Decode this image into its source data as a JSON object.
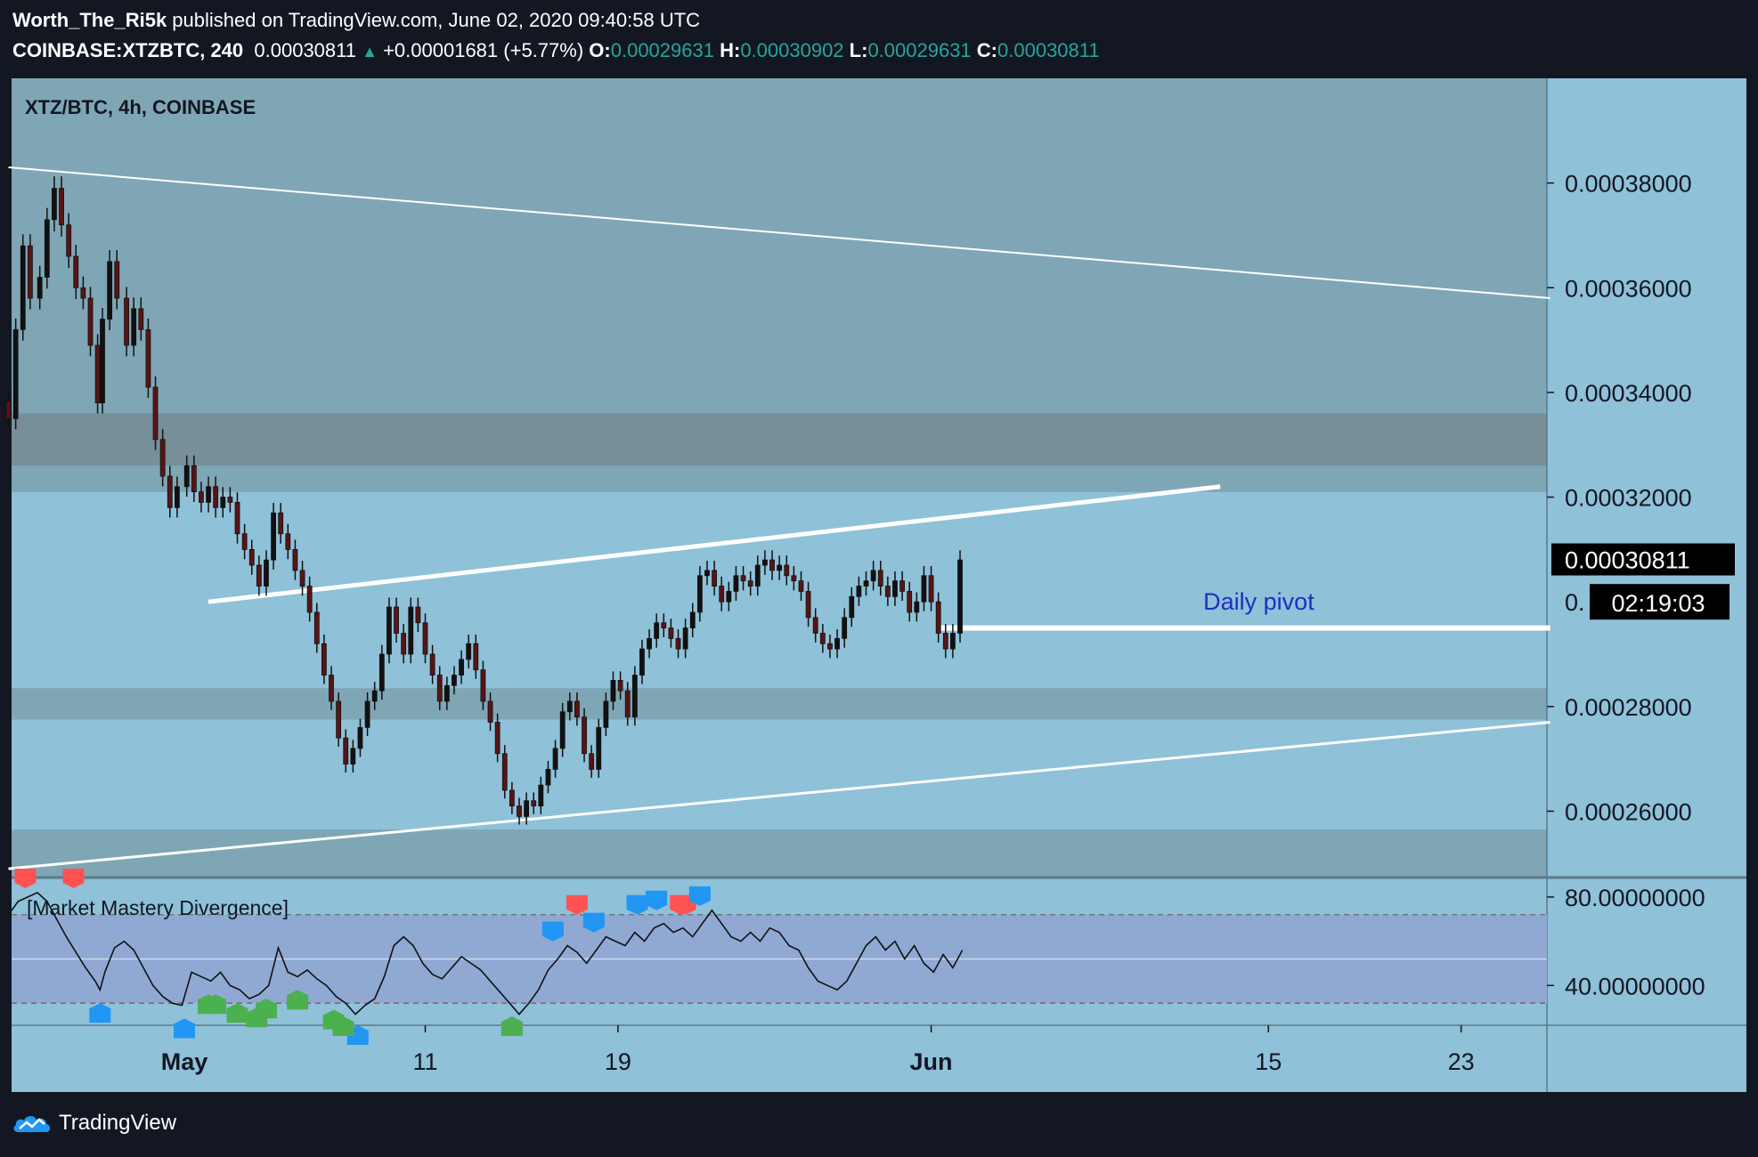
{
  "header": {
    "author": "Worth_The_Ri5k",
    "published_text": " published on TradingView.com, June 02, 2020 09:40:58 UTC",
    "symbol": "COINBASE:XTZBTC, 240",
    "last": "0.00030811",
    "change": "+0.00001681 (+5.77%)",
    "o_label": "O:",
    "o_value": "0.00029631",
    "h_label": "H:",
    "h_value": "0.00030902",
    "l_label": "L:",
    "l_value": "0.00029631",
    "c_label": "C:",
    "c_value": "0.00030811"
  },
  "footer": {
    "brand": "TradingView"
  },
  "colors": {
    "outer_bg": "#131722",
    "chart_bg": "#8fc1d9",
    "zone_dark": "#7fa6b5",
    "zone_darker": "#768f98",
    "candle_body": "#5a1414",
    "indicator_band": "#8fa9d3",
    "pivot_label": "#1f2dc2",
    "up_arrow_red": "#ff5252",
    "marker_blue": "#2196f3",
    "marker_green": "#4caf50"
  },
  "chart_data": {
    "type": "candlestick",
    "title": "XTZ/BTC, 4h, COINBASE",
    "price_axis": {
      "ticks": [
        0.00038,
        0.00036,
        0.00034,
        0.00032,
        0.00028,
        0.00026
      ],
      "tick_labels": [
        "0.00038000",
        "0.00036000",
        "0.00034000",
        "0.00032000",
        "0.00028000",
        "0.00026000"
      ],
      "range": [
        0.0002475,
        0.0004
      ],
      "last_price_label": "0.00030811",
      "countdown_prefix": "0.",
      "countdown_label": "02:19:03"
    },
    "time_axis": {
      "tick_labels": [
        "May",
        "11",
        "19",
        "Jun",
        "15",
        "23"
      ],
      "tick_days": [
        0,
        10,
        18,
        31,
        45,
        53
      ]
    },
    "zones": [
      {
        "name": "upper-resistance-zone",
        "from": 0.000326,
        "to": 0.000336
      },
      {
        "name": "upper-zone-edge",
        "from": 0.000321,
        "to": 0.000326
      },
      {
        "name": "mid-support-zone",
        "from": 0.0002775,
        "to": 0.0002835
      },
      {
        "name": "lower-support-zone",
        "from": 0.0002475,
        "to": 0.0002565
      }
    ],
    "trendlines": [
      {
        "name": "upper-channel-line",
        "p1": [
          -7.3,
          0.000383
        ],
        "p2": [
          56.7,
          0.000358
        ],
        "width": 2
      },
      {
        "name": "rising-wedge-top",
        "p1": [
          1.0,
          0.0003
        ],
        "p2": [
          43.0,
          0.000322
        ],
        "width": 5
      },
      {
        "name": "lower-channel-line",
        "p1": [
          -7.3,
          0.000249
        ],
        "p2": [
          56.7,
          0.000277
        ],
        "width": 3
      },
      {
        "name": "daily-pivot-line",
        "p1": [
          31.2,
          0.000295
        ],
        "p2": [
          56.7,
          0.000295
        ],
        "width": 6
      }
    ],
    "annotation": {
      "text": "Daily pivot",
      "at": [
        44.6,
        0.0002985
      ]
    },
    "close_series": [
      [
        -7.3,
        0.000335
      ],
      [
        -7.0,
        0.000352
      ],
      [
        -6.7,
        0.000368
      ],
      [
        -6.4,
        0.000358
      ],
      [
        -6.0,
        0.000362
      ],
      [
        -5.7,
        0.000373
      ],
      [
        -5.4,
        0.000379
      ],
      [
        -5.1,
        0.000372
      ],
      [
        -4.8,
        0.000366
      ],
      [
        -4.5,
        0.00036
      ],
      [
        -4.2,
        0.000358
      ],
      [
        -3.9,
        0.000349
      ],
      [
        -3.6,
        0.000338
      ],
      [
        -3.4,
        0.000354
      ],
      [
        -3.1,
        0.000365
      ],
      [
        -2.8,
        0.000358
      ],
      [
        -2.4,
        0.000349
      ],
      [
        -2.1,
        0.000356
      ],
      [
        -1.8,
        0.000352
      ],
      [
        -1.5,
        0.000341
      ],
      [
        -1.2,
        0.000331
      ],
      [
        -0.9,
        0.000324
      ],
      [
        -0.6,
        0.000318
      ],
      [
        -0.3,
        0.000322
      ],
      [
        0.1,
        0.000326
      ],
      [
        0.4,
        0.000321
      ],
      [
        0.7,
        0.000319
      ],
      [
        1.0,
        0.000322
      ],
      [
        1.3,
        0.000318
      ],
      [
        1.6,
        0.00032
      ],
      [
        1.9,
        0.000319
      ],
      [
        2.2,
        0.000313
      ],
      [
        2.5,
        0.00031
      ],
      [
        2.8,
        0.000307
      ],
      [
        3.1,
        0.000303
      ],
      [
        3.4,
        0.000308
      ],
      [
        3.7,
        0.000317
      ],
      [
        4.0,
        0.000313
      ],
      [
        4.3,
        0.00031
      ],
      [
        4.6,
        0.000306
      ],
      [
        4.9,
        0.000303
      ],
      [
        5.2,
        0.000298
      ],
      [
        5.5,
        0.000292
      ],
      [
        5.8,
        0.000286
      ],
      [
        6.1,
        0.000281
      ],
      [
        6.4,
        0.000274
      ],
      [
        6.7,
        0.000269
      ],
      [
        7.0,
        0.000272
      ],
      [
        7.3,
        0.000276
      ],
      [
        7.6,
        0.000281
      ],
      [
        7.9,
        0.000283
      ],
      [
        8.2,
        0.00029
      ],
      [
        8.5,
        0.000299
      ],
      [
        8.8,
        0.000294
      ],
      [
        9.1,
        0.00029
      ],
      [
        9.4,
        0.000299
      ],
      [
        9.7,
        0.000296
      ],
      [
        10.0,
        0.00029
      ],
      [
        10.3,
        0.000286
      ],
      [
        10.6,
        0.000281
      ],
      [
        10.9,
        0.000284
      ],
      [
        11.2,
        0.000286
      ],
      [
        11.5,
        0.000289
      ],
      [
        11.8,
        0.000292
      ],
      [
        12.1,
        0.000287
      ],
      [
        12.4,
        0.000281
      ],
      [
        12.7,
        0.000277
      ],
      [
        13.0,
        0.000271
      ],
      [
        13.3,
        0.000264
      ],
      [
        13.6,
        0.000261
      ],
      [
        13.9,
        0.000259
      ],
      [
        14.2,
        0.000262
      ],
      [
        14.5,
        0.000261
      ],
      [
        14.8,
        0.000265
      ],
      [
        15.1,
        0.000268
      ],
      [
        15.4,
        0.000272
      ],
      [
        15.7,
        0.000279
      ],
      [
        16.0,
        0.000281
      ],
      [
        16.3,
        0.000278
      ],
      [
        16.6,
        0.000271
      ],
      [
        16.9,
        0.000268
      ],
      [
        17.2,
        0.000276
      ],
      [
        17.5,
        0.000281
      ],
      [
        17.8,
        0.000285
      ],
      [
        18.1,
        0.000283
      ],
      [
        18.4,
        0.000278
      ],
      [
        18.7,
        0.000286
      ],
      [
        19.0,
        0.000291
      ],
      [
        19.3,
        0.000293
      ],
      [
        19.6,
        0.000296
      ],
      [
        19.9,
        0.000295
      ],
      [
        20.2,
        0.000293
      ],
      [
        20.5,
        0.000291
      ],
      [
        20.8,
        0.000295
      ],
      [
        21.1,
        0.000298
      ],
      [
        21.4,
        0.000305
      ],
      [
        21.7,
        0.000306
      ],
      [
        22.0,
        0.000303
      ],
      [
        22.3,
        0.0003
      ],
      [
        22.6,
        0.000302
      ],
      [
        22.9,
        0.000305
      ],
      [
        23.2,
        0.000304
      ],
      [
        23.5,
        0.000303
      ],
      [
        23.8,
        0.000307
      ],
      [
        24.1,
        0.000308
      ],
      [
        24.4,
        0.000306
      ],
      [
        24.7,
        0.000307
      ],
      [
        25.0,
        0.000305
      ],
      [
        25.3,
        0.000304
      ],
      [
        25.6,
        0.000302
      ],
      [
        25.9,
        0.000297
      ],
      [
        26.2,
        0.000294
      ],
      [
        26.5,
        0.000292
      ],
      [
        26.8,
        0.000291
      ],
      [
        27.1,
        0.000293
      ],
      [
        27.4,
        0.000297
      ],
      [
        27.7,
        0.000301
      ],
      [
        28.0,
        0.000303
      ],
      [
        28.3,
        0.000304
      ],
      [
        28.6,
        0.000306
      ],
      [
        28.9,
        0.000303
      ],
      [
        29.2,
        0.000301
      ],
      [
        29.5,
        0.000304
      ],
      [
        29.8,
        0.000302
      ],
      [
        30.1,
        0.000298
      ],
      [
        30.4,
        0.0003
      ],
      [
        30.7,
        0.000305
      ],
      [
        31.0,
        0.0003
      ],
      [
        31.3,
        0.000294
      ],
      [
        31.6,
        0.000291
      ],
      [
        31.9,
        0.000294
      ],
      [
        32.2,
        0.000308
      ]
    ],
    "indicator": {
      "name": "[Market Mastery Divergence]",
      "ticks": [
        80,
        40
      ],
      "tick_labels": [
        "80.00000000",
        "40.00000000"
      ],
      "range": [
        22,
        88
      ],
      "band": [
        32,
        72
      ],
      "midline": 52,
      "series": [
        [
          -7.3,
          72
        ],
        [
          -6.9,
          78
        ],
        [
          -6.5,
          80
        ],
        [
          -6.1,
          82
        ],
        [
          -5.7,
          78
        ],
        [
          -5.3,
          70
        ],
        [
          -4.9,
          62
        ],
        [
          -4.5,
          55
        ],
        [
          -4.1,
          48
        ],
        [
          -3.7,
          42
        ],
        [
          -3.5,
          38
        ],
        [
          -3.3,
          46
        ],
        [
          -2.9,
          57
        ],
        [
          -2.5,
          60
        ],
        [
          -2.1,
          56
        ],
        [
          -1.7,
          48
        ],
        [
          -1.3,
          40
        ],
        [
          -0.9,
          35
        ],
        [
          -0.5,
          32
        ],
        [
          -0.1,
          31
        ],
        [
          0.3,
          46
        ],
        [
          0.7,
          44
        ],
        [
          1.1,
          42
        ],
        [
          1.5,
          46
        ],
        [
          1.9,
          40
        ],
        [
          2.3,
          38
        ],
        [
          2.7,
          34
        ],
        [
          3.1,
          36
        ],
        [
          3.5,
          40
        ],
        [
          3.9,
          57
        ],
        [
          4.3,
          46
        ],
        [
          4.7,
          44
        ],
        [
          5.1,
          47
        ],
        [
          5.5,
          43
        ],
        [
          5.9,
          40
        ],
        [
          6.3,
          35
        ],
        [
          6.7,
          32
        ],
        [
          7.1,
          27
        ],
        [
          7.5,
          31
        ],
        [
          7.9,
          34
        ],
        [
          8.3,
          44
        ],
        [
          8.7,
          58
        ],
        [
          9.1,
          62
        ],
        [
          9.5,
          58
        ],
        [
          9.9,
          50
        ],
        [
          10.3,
          45
        ],
        [
          10.7,
          43
        ],
        [
          11.1,
          48
        ],
        [
          11.5,
          53
        ],
        [
          11.9,
          50
        ],
        [
          12.3,
          47
        ],
        [
          12.7,
          42
        ],
        [
          13.1,
          37
        ],
        [
          13.5,
          32
        ],
        [
          13.9,
          27
        ],
        [
          14.3,
          32
        ],
        [
          14.7,
          38
        ],
        [
          15.1,
          47
        ],
        [
          15.5,
          52
        ],
        [
          15.9,
          58
        ],
        [
          16.3,
          55
        ],
        [
          16.7,
          50
        ],
        [
          17.1,
          56
        ],
        [
          17.5,
          62
        ],
        [
          17.9,
          60
        ],
        [
          18.3,
          58
        ],
        [
          18.7,
          64
        ],
        [
          19.1,
          60
        ],
        [
          19.5,
          66
        ],
        [
          19.9,
          68
        ],
        [
          20.3,
          64
        ],
        [
          20.7,
          66
        ],
        [
          21.1,
          62
        ],
        [
          21.5,
          68
        ],
        [
          21.9,
          74
        ],
        [
          22.3,
          68
        ],
        [
          22.7,
          62
        ],
        [
          23.1,
          60
        ],
        [
          23.5,
          64
        ],
        [
          23.9,
          60
        ],
        [
          24.3,
          66
        ],
        [
          24.7,
          64
        ],
        [
          25.1,
          58
        ],
        [
          25.5,
          56
        ],
        [
          25.9,
          48
        ],
        [
          26.3,
          42
        ],
        [
          26.7,
          40
        ],
        [
          27.1,
          38
        ],
        [
          27.5,
          42
        ],
        [
          27.9,
          50
        ],
        [
          28.3,
          58
        ],
        [
          28.7,
          62
        ],
        [
          29.1,
          56
        ],
        [
          29.5,
          60
        ],
        [
          29.9,
          52
        ],
        [
          30.3,
          58
        ],
        [
          30.7,
          50
        ],
        [
          31.1,
          46
        ],
        [
          31.5,
          54
        ],
        [
          31.9,
          48
        ],
        [
          32.3,
          56
        ]
      ],
      "sell_markers": [
        -6.6,
        -4.6,
        16.3,
        20.6,
        20.8
      ],
      "buy_blue_markers": [
        -3.5,
        0.0,
        7.2,
        15.3,
        17.0,
        18.8,
        19.6,
        21.4
      ],
      "buy_green_markers": [
        1.0,
        1.3,
        2.2,
        3.0,
        3.4,
        4.7,
        6.2,
        6.6,
        13.6
      ]
    }
  }
}
